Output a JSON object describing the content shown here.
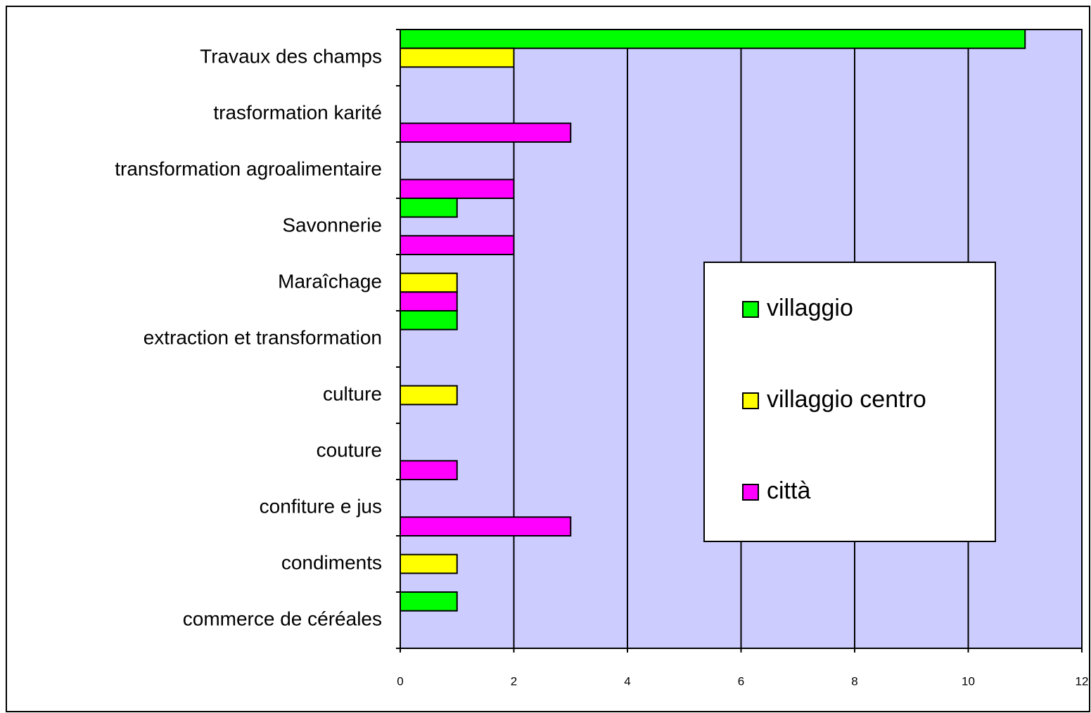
{
  "chart_data": {
    "type": "hbar",
    "categories": [
      "Travaux des champs",
      "trasformation karité",
      "transformation agroalimentaire",
      "Savonnerie",
      "Maraîchage",
      "extraction et transformation",
      "culture",
      "couture",
      "confiture e jus",
      "condiments",
      "commerce de céréales"
    ],
    "series": [
      {
        "name": "villaggio",
        "color": "#00ff00",
        "values": [
          11,
          null,
          null,
          1,
          null,
          1,
          null,
          null,
          null,
          null,
          1
        ]
      },
      {
        "name": "villaggio centro",
        "color": "#ffff00",
        "values": [
          2,
          null,
          null,
          null,
          1,
          null,
          1,
          null,
          null,
          1,
          null
        ]
      },
      {
        "name": "città",
        "color": "#ff00ff",
        "values": [
          null,
          3,
          2,
          2,
          1,
          null,
          null,
          1,
          3,
          null,
          null
        ]
      }
    ],
    "xlim": [
      0,
      12
    ],
    "xticks": [
      0,
      2,
      4,
      6,
      8,
      10,
      12
    ],
    "grid": true,
    "plot_background": "#ccccff",
    "legend": "right"
  }
}
